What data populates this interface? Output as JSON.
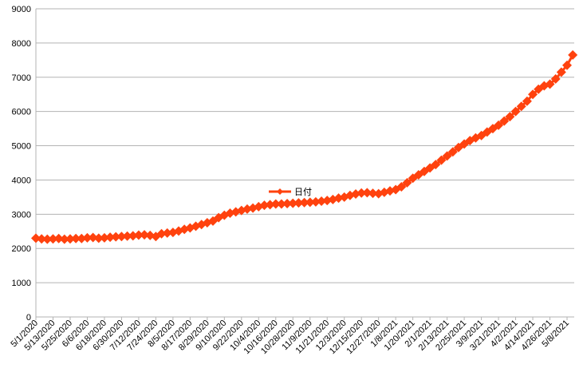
{
  "chart_data": {
    "type": "line",
    "categories": [
      "5/1/2020",
      null,
      null,
      "5/13/2020",
      null,
      null,
      "5/25/2020",
      null,
      null,
      "6/6/2020",
      null,
      null,
      "6/18/2020",
      null,
      null,
      "6/30/2020",
      null,
      null,
      "7/12/2020",
      null,
      null,
      "7/24/2020",
      null,
      null,
      "8/5/2020",
      null,
      null,
      "8/17/2020",
      null,
      null,
      "8/29/2020",
      null,
      null,
      "9/10/2020",
      null,
      null,
      "9/22/2020",
      null,
      null,
      "10/4/2020",
      null,
      null,
      "10/16/2020",
      null,
      null,
      "10/28/2020",
      null,
      null,
      "11/9/2020",
      null,
      null,
      "11/21/2020",
      null,
      null,
      "12/3/2020",
      null,
      null,
      "12/15/2020",
      null,
      null,
      "12/27/2020",
      null,
      null,
      "1/8/2021",
      null,
      null,
      "1/20/2021",
      null,
      null,
      "2/1/2021",
      null,
      null,
      "2/13/2021",
      null,
      null,
      "2/25/2021",
      null,
      null,
      "3/9/2021",
      null,
      null,
      "3/21/2021",
      null,
      null,
      "4/2/2021",
      null,
      null,
      "4/14/2021",
      null,
      null,
      "4/26/2021",
      null,
      null,
      "5/8/2021",
      null
    ],
    "series": [
      {
        "name": "日付",
        "color": "#ff420e",
        "values": [
          2300,
          2280,
          2270,
          2280,
          2290,
          2270,
          2280,
          2290,
          2290,
          2310,
          2320,
          2300,
          2310,
          2330,
          2340,
          2350,
          2360,
          2370,
          2390,
          2400,
          2380,
          2350,
          2430,
          2450,
          2470,
          2510,
          2560,
          2600,
          2650,
          2700,
          2750,
          2800,
          2900,
          2970,
          3030,
          3070,
          3110,
          3150,
          3180,
          3220,
          3260,
          3280,
          3300,
          3300,
          3310,
          3320,
          3330,
          3340,
          3350,
          3360,
          3380,
          3400,
          3430,
          3470,
          3500,
          3550,
          3590,
          3620,
          3630,
          3610,
          3600,
          3640,
          3680,
          3720,
          3800,
          3920,
          4050,
          4150,
          4250,
          4350,
          4450,
          4580,
          4700,
          4820,
          4950,
          5050,
          5150,
          5230,
          5300,
          5400,
          5500,
          5600,
          5720,
          5850,
          6000,
          6150,
          6300,
          6500,
          6650,
          6750,
          6800,
          6950,
          7150,
          7350,
          7650
        ]
      }
    ],
    "ylim": [
      0,
      9000
    ],
    "yticks": [
      0,
      1000,
      2000,
      3000,
      4000,
      5000,
      6000,
      7000,
      8000,
      9000
    ],
    "grid": true
  }
}
